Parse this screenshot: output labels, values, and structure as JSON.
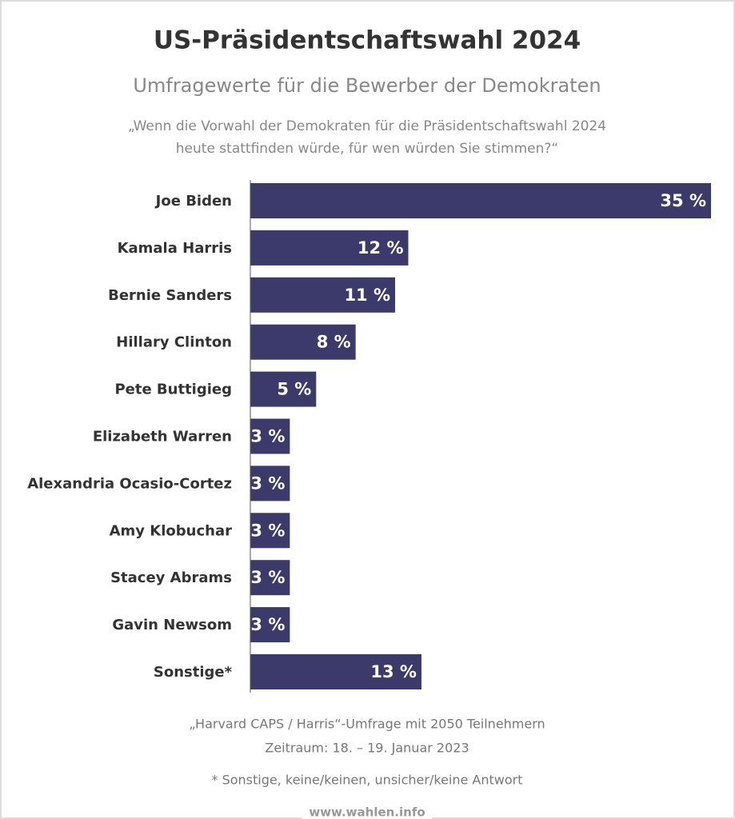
{
  "chart_data": {
    "type": "bar",
    "orientation": "horizontal",
    "title": "US-Präsidentschaftswahl 2024",
    "subtitle": "Umfragewerte für die Bewerber der Demokraten",
    "question": [
      "„Wenn die Vorwahl der Demokraten für die Präsidentschaftswahl 2024",
      "heute stattfinden würde, für wen würden Sie stimmen?“"
    ],
    "categories": [
      "Joe Biden",
      "Kamala Harris",
      "Bernie Sanders",
      "Hillary Clinton",
      "Pete Buttigieg",
      "Elizabeth Warren",
      "Alexandria Ocasio-Cortez",
      "Amy Klobuchar",
      "Stacey Abrams",
      "Gavin Newsom",
      "Sonstige*"
    ],
    "values": [
      35,
      12,
      11,
      8,
      5,
      3,
      3,
      3,
      3,
      3,
      13
    ],
    "value_labels": [
      "35 %",
      "12 %",
      "11 %",
      "8 %",
      "5 %",
      "3 %",
      "3 %",
      "3 %",
      "3 %",
      "3 %",
      "13 %"
    ],
    "color": "#3b3a6b",
    "source": "„Harvard CAPS / Harris“-Umfrage mit 2050 Teilnehmern",
    "period": "Zeitraum: 18. – 19. Januar 2023",
    "footnote": "* Sonstige, keine/keinen, unsicher/keine Antwort",
    "website": "www.wahlen.info"
  }
}
